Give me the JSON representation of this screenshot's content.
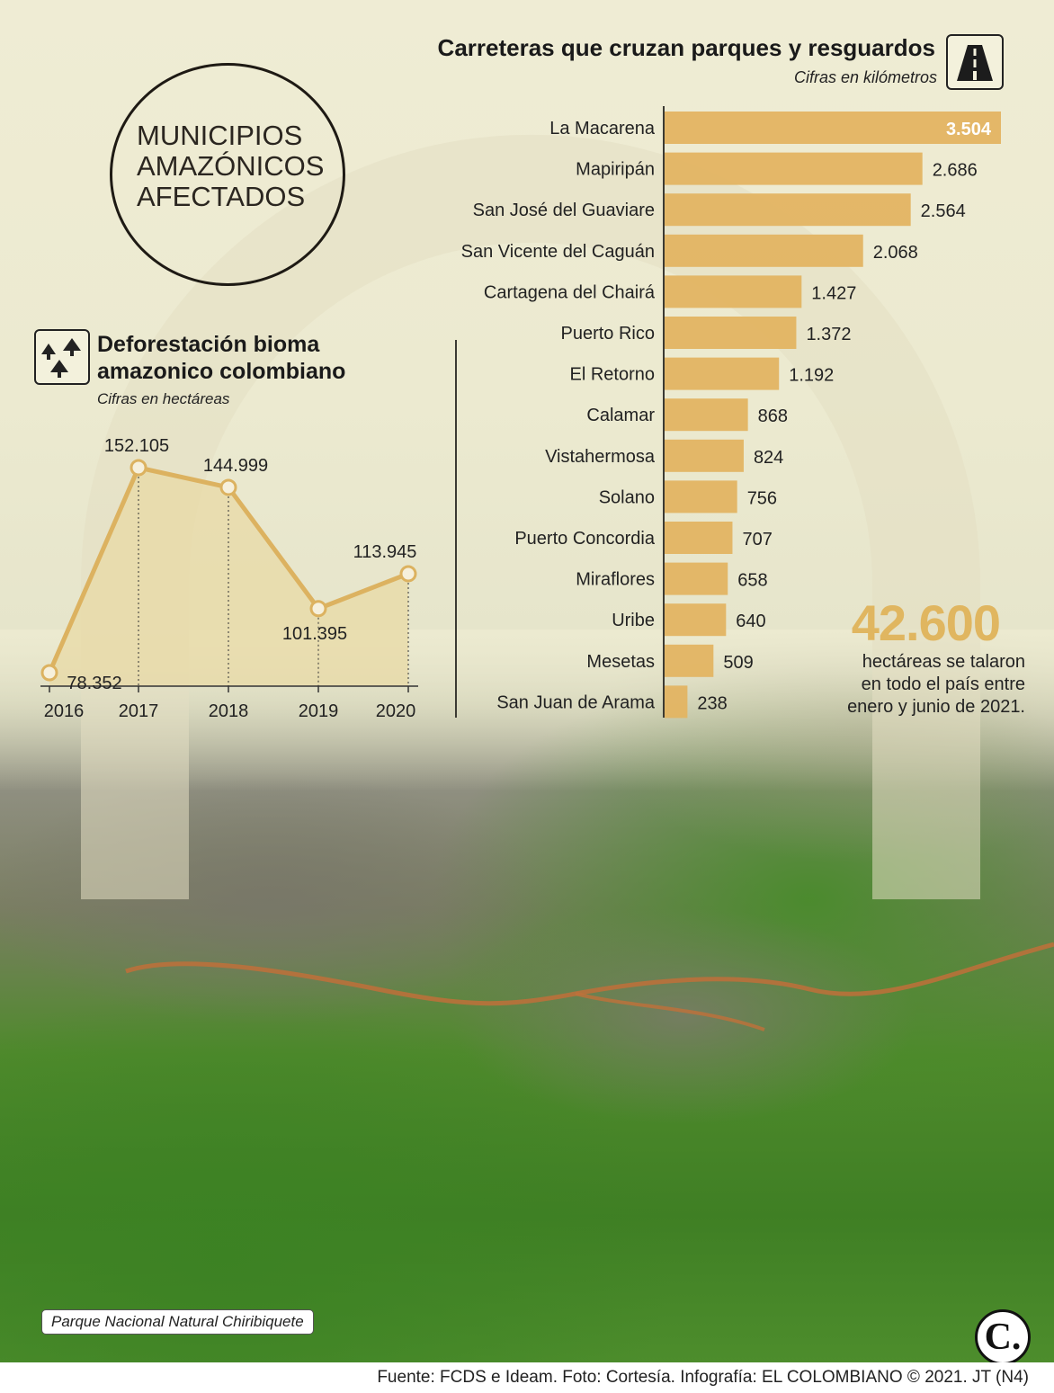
{
  "header": {
    "circle_lines": [
      "MUNICIPIOS",
      "AMAZÓNICOS",
      "AFECTADOS"
    ]
  },
  "bar_section": {
    "title": "Carreteras que cruzan parques y resguardos",
    "subtitle": "Cifras en kilómetros",
    "icon": "road-icon"
  },
  "line_section": {
    "title_lines": [
      "Deforestación bioma",
      "amazonico colombiano"
    ],
    "subtitle": "Cifras en hectáreas",
    "icon": "deforestation-icon"
  },
  "highlight": {
    "number": "42.600",
    "lines": [
      "hectáreas se talaron",
      "en todo el país entre",
      "enero y junio de 2021."
    ]
  },
  "photo_caption": "Parque Nacional Natural Chiribiquete",
  "logo_text": "C.",
  "footer": "Fuente: FCDS e Ideam. Foto: Cortesía. Infografía: EL COLOMBIANO © 2021. JT (N4)",
  "colors": {
    "bar": "#e3b462",
    "line": "#dcb260",
    "area": "#e8d9a6",
    "highlight": "#e0b660"
  },
  "chart_data": [
    {
      "type": "bar",
      "orientation": "horizontal",
      "title": "Carreteras que cruzan parques y resguardos",
      "subtitle": "Cifras en kilómetros",
      "categories": [
        "La Macarena",
        "Mapiripán",
        "San José del Guaviare",
        "San Vicente del Caguán",
        "Cartagena del Chairá",
        "Puerto Rico",
        "El Retorno",
        "Calamar",
        "Vistahermosa",
        "Solano",
        "Puerto Concordia",
        "Miraflores",
        "Uribe",
        "Mesetas",
        "San Juan de Arama"
      ],
      "values": [
        3504,
        2686,
        2564,
        2068,
        1427,
        1372,
        1192,
        868,
        824,
        756,
        707,
        658,
        640,
        509,
        238
      ],
      "labels": [
        "3.504",
        "2.686",
        "2.564",
        "2.068",
        "1.427",
        "1.372",
        "1.192",
        "868",
        "824",
        "756",
        "707",
        "658",
        "640",
        "509",
        "238"
      ],
      "xlim": [
        0,
        3504
      ]
    },
    {
      "type": "area",
      "title": "Deforestación bioma amazonico colombiano",
      "subtitle": "Cifras en hectáreas",
      "x": [
        "2016",
        "2017",
        "2018",
        "2019",
        "2020"
      ],
      "values": [
        78352,
        152105,
        144999,
        101395,
        113945
      ],
      "labels": [
        "78.352",
        "152.105",
        "144.999",
        "101.395",
        "113.945"
      ]
    }
  ]
}
